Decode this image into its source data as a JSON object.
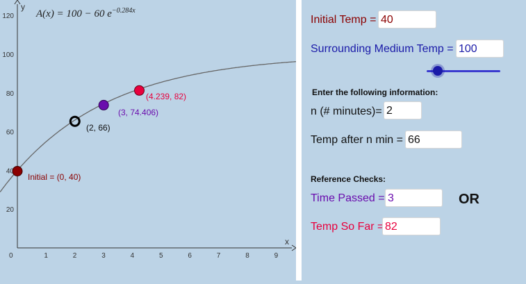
{
  "graph": {
    "formula_lhs": "A(x) = 100 − 60 e",
    "formula_exp": "−0.284x",
    "axis_x_label": "x",
    "axis_y_label": "y",
    "x_ticks": [
      "0",
      "1",
      "2",
      "3",
      "4",
      "5",
      "6",
      "7",
      "8",
      "9"
    ],
    "y_ticks": [
      "20",
      "40",
      "60",
      "80",
      "100",
      "120"
    ],
    "points": {
      "initial": {
        "label": "Initial = (0, 40)",
        "color": "#8b0000"
      },
      "n_point": {
        "label": "(2, 66)",
        "color": "#000000"
      },
      "time_passed": {
        "label": "(3, 74.406)",
        "color": "#6a0dad"
      },
      "temp_so_far": {
        "label": "(4.239, 82)",
        "color": "#e8003d"
      }
    },
    "curve": {
      "a": 100,
      "b": 60,
      "k": 0.284,
      "color": "#666666"
    }
  },
  "panel": {
    "initial_temp_label": "Initial Temp =",
    "initial_temp_value": "40",
    "surrounding_label": "Surrounding Medium Temp =",
    "surrounding_value": "100",
    "slider_level": 0.15,
    "info_heading": "Enter the following information:",
    "n_label": "n (# minutes)=",
    "n_value": "2",
    "temp_after_label": "Temp after n min =",
    "temp_after_value": "66",
    "reference_heading": "Reference Checks:",
    "time_passed_label": "Time Passed =",
    "time_passed_value": "3",
    "or_text": "OR",
    "temp_so_far_label": "Temp So Far =",
    "temp_so_far_value": "82"
  },
  "colors": {
    "dark_red": "#8b0000",
    "blue": "#1a1aa8",
    "purple": "#6a0dad",
    "crimson": "#e8003d",
    "background": "#bcd3e6"
  }
}
